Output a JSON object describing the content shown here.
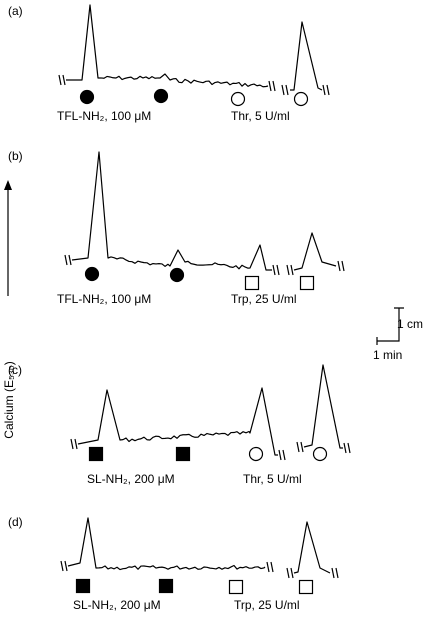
{
  "panels": [
    {
      "label": "(a)",
      "agonist": "TFL-NH₂, 100 μM",
      "protease": "Thr, 5 U/ml"
    },
    {
      "label": "(b)",
      "agonist": "TFL-NH₂, 100 μM",
      "protease": "Trp, 25 U/ml"
    },
    {
      "label": "(c)",
      "agonist": "SL-NH₂, 200 μM",
      "protease": "Thr, 5 U/ml"
    },
    {
      "label": "(d)",
      "agonist": "SL-NH₂, 200 μM",
      "protease": "Trp, 25 U/ml"
    }
  ],
  "axis_label": "Calcium (E₅₃₀)",
  "scale": {
    "vertical": "1 cm",
    "horizontal": "1 min"
  }
}
